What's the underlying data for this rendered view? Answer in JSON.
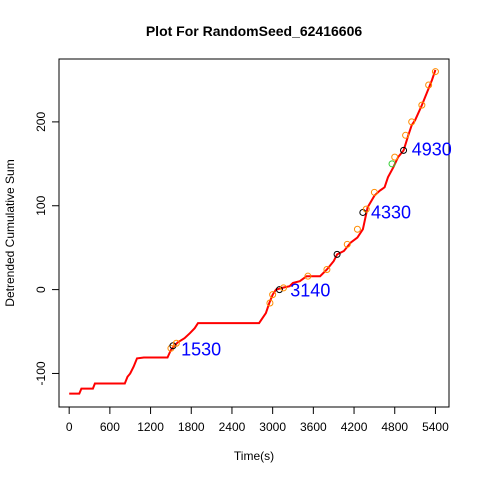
{
  "chart_data": {
    "type": "line",
    "title": "Plot For RandomSeed_62416606",
    "xlabel": "Time(s)",
    "ylabel": "Detrended Cumulative Sum",
    "xlim": [
      -150,
      5600
    ],
    "ylim": [
      -140,
      275
    ],
    "x_ticks": [
      0,
      600,
      1200,
      1800,
      2400,
      3000,
      3600,
      4200,
      4800,
      5400
    ],
    "y_ticks": [
      -100,
      0,
      100,
      200
    ],
    "grid": false,
    "colors": {
      "line": "#ff0000",
      "marker_orange": "#ff8c00",
      "marker_green": "#32cd32",
      "marker_black": "#000000",
      "annotation": "#0000ff"
    },
    "series": [
      {
        "values": [
          [
            0,
            -124
          ],
          [
            150,
            -124
          ],
          [
            180,
            -118
          ],
          [
            350,
            -118
          ],
          [
            380,
            -112
          ],
          [
            820,
            -112
          ],
          [
            860,
            -104
          ],
          [
            900,
            -100
          ],
          [
            950,
            -92
          ],
          [
            1000,
            -82
          ],
          [
            1100,
            -81
          ],
          [
            1450,
            -81
          ],
          [
            1500,
            -72
          ],
          [
            1540,
            -68
          ],
          [
            1600,
            -63
          ],
          [
            1700,
            -58
          ],
          [
            1780,
            -52
          ],
          [
            1850,
            -46
          ],
          [
            1900,
            -40
          ],
          [
            2200,
            -40
          ],
          [
            2800,
            -40
          ],
          [
            2850,
            -34
          ],
          [
            2900,
            -28
          ],
          [
            2950,
            -16
          ],
          [
            3000,
            -6
          ],
          [
            3050,
            0
          ],
          [
            3140,
            2
          ],
          [
            3250,
            4
          ],
          [
            3300,
            8
          ],
          [
            3400,
            10
          ],
          [
            3500,
            16
          ],
          [
            3700,
            16
          ],
          [
            3800,
            24
          ],
          [
            3900,
            34
          ],
          [
            3950,
            42
          ],
          [
            4050,
            46
          ],
          [
            4150,
            56
          ],
          [
            4250,
            62
          ],
          [
            4330,
            72
          ],
          [
            4400,
            98
          ],
          [
            4500,
            112
          ],
          [
            4580,
            118
          ],
          [
            4650,
            122
          ],
          [
            4700,
            134
          ],
          [
            4780,
            146
          ],
          [
            4850,
            158
          ],
          [
            4930,
            166
          ],
          [
            5000,
            184
          ],
          [
            5050,
            196
          ],
          [
            5100,
            202
          ],
          [
            5200,
            220
          ],
          [
            5300,
            240
          ],
          [
            5350,
            250
          ],
          [
            5400,
            262
          ]
        ]
      }
    ],
    "markers": [
      {
        "x": 1500,
        "y": -70,
        "c": "orange"
      },
      {
        "x": 1530,
        "y": -67,
        "c": "black"
      },
      {
        "x": 1580,
        "y": -64,
        "c": "orange"
      },
      {
        "x": 2960,
        "y": -16,
        "c": "orange"
      },
      {
        "x": 3000,
        "y": -6,
        "c": "orange"
      },
      {
        "x": 3100,
        "y": 0,
        "c": "black"
      },
      {
        "x": 3160,
        "y": 2,
        "c": "orange"
      },
      {
        "x": 3520,
        "y": 16,
        "c": "orange"
      },
      {
        "x": 3800,
        "y": 24,
        "c": "orange"
      },
      {
        "x": 3950,
        "y": 42,
        "c": "black"
      },
      {
        "x": 4100,
        "y": 54,
        "c": "orange"
      },
      {
        "x": 4250,
        "y": 72,
        "c": "orange"
      },
      {
        "x": 4330,
        "y": 92,
        "c": "black"
      },
      {
        "x": 4380,
        "y": 96,
        "c": "orange"
      },
      {
        "x": 4500,
        "y": 116,
        "c": "orange"
      },
      {
        "x": 4760,
        "y": 150,
        "c": "green"
      },
      {
        "x": 4800,
        "y": 158,
        "c": "orange"
      },
      {
        "x": 4930,
        "y": 166,
        "c": "black"
      },
      {
        "x": 4960,
        "y": 184,
        "c": "orange"
      },
      {
        "x": 5050,
        "y": 200,
        "c": "orange"
      },
      {
        "x": 5200,
        "y": 220,
        "c": "orange"
      },
      {
        "x": 5300,
        "y": 244,
        "c": "orange"
      },
      {
        "x": 5400,
        "y": 260,
        "c": "orange"
      }
    ],
    "annotations": [
      {
        "text": "1530",
        "x": 1650,
        "y": -70
      },
      {
        "text": "3140",
        "x": 3260,
        "y": 0
      },
      {
        "text": "4330",
        "x": 4450,
        "y": 93
      },
      {
        "text": "4930",
        "x": 5050,
        "y": 168
      }
    ]
  }
}
